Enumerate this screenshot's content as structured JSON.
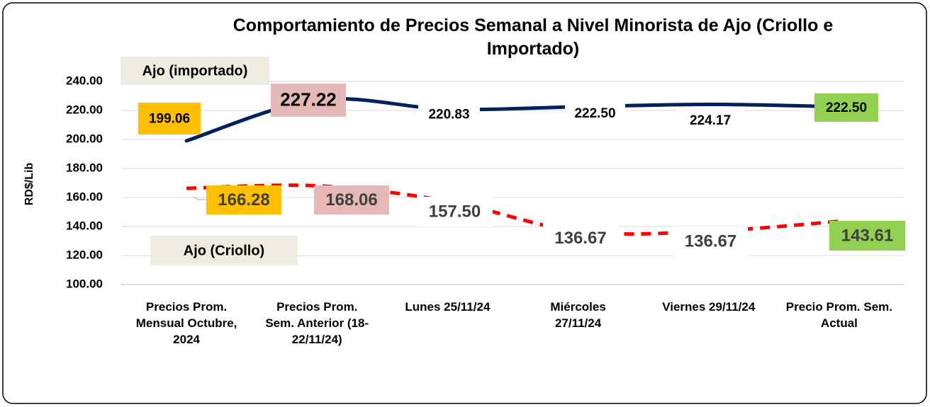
{
  "chart_data": {
    "type": "line",
    "title": "Comportamiento de Precios Semanal a Nivel Minorista de Ajo (Criollo e Importado)",
    "y_label": "RD$/Lib",
    "categories": [
      "Precios Prom. Mensual Octubre, 2024",
      "Precios Prom. Sem. Anterior (18-22/11/24)",
      "Lunes 25/11/24",
      "Miércoles 27/11/24",
      "Viernes 29/11/24",
      "Precio Prom. Sem. Actual"
    ],
    "series": [
      {
        "name": "Ajo (importado)",
        "color": "#002060",
        "dashed": false,
        "values": [
          199.06,
          227.22,
          220.83,
          222.5,
          224.17,
          222.5
        ],
        "value_labels": [
          "199.06",
          "227.22",
          "220.83",
          "222.50",
          "224.17",
          "222.50"
        ]
      },
      {
        "name": "Ajo (Criollo)",
        "color": "#ff0000",
        "dashed": true,
        "values": [
          166.28,
          168.06,
          157.5,
          136.67,
          136.67,
          143.61
        ],
        "value_labels": [
          "166.28",
          "168.06",
          "157.50",
          "136.67",
          "136.67",
          "143.61"
        ]
      }
    ],
    "label_fills": [
      "#ffc000",
      "#e6b8b7",
      "#ffffff",
      "#ffffff",
      "#ffffff",
      "#92d050"
    ],
    "ylim": [
      100,
      240
    ],
    "yticks": [
      {
        "value": 100,
        "label": "100.00"
      },
      {
        "value": 120,
        "label": "120.00"
      },
      {
        "value": 140,
        "label": "140.00"
      },
      {
        "value": 160,
        "label": "160.00"
      },
      {
        "value": 180,
        "label": "180.00"
      },
      {
        "value": 200,
        "label": "200.00"
      },
      {
        "value": 220,
        "label": "220.00"
      },
      {
        "value": 240,
        "label": "240.00"
      }
    ],
    "grid": true
  }
}
